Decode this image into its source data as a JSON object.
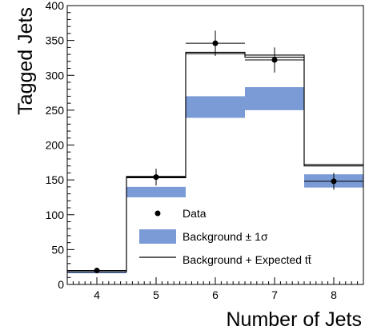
{
  "chart_data": {
    "type": "bar",
    "title": "",
    "xlabel": "Number of Jets",
    "ylabel": "Tagged Jets",
    "categories": [
      "4",
      "5",
      "6",
      "7",
      "8"
    ],
    "xlim": [
      3.5,
      8.5
    ],
    "ylim": [
      0,
      400
    ],
    "yticks": [
      "0",
      "50",
      "100",
      "150",
      "200",
      "250",
      "300",
      "350",
      "400"
    ],
    "grid": false,
    "legend_position": "bottom-center",
    "series": [
      {
        "name": "Data",
        "style": "points-with-error-bars",
        "color": "#000000",
        "values": [
          20,
          154,
          346,
          322,
          148
        ],
        "errors": [
          4,
          12,
          18,
          18,
          12
        ]
      },
      {
        "name": "Background ± 1σ",
        "style": "band",
        "color": "#7b9bd6",
        "low": [
          16,
          125,
          239,
          250,
          139
        ],
        "high": [
          19,
          140,
          270,
          283,
          158
        ]
      },
      {
        "name": "Background + Expected tt̄",
        "style": "step-line",
        "color": "#000000",
        "upper": [
          20,
          155,
          333,
          329,
          172
        ],
        "lower": [
          18,
          153,
          331,
          326,
          170
        ]
      }
    ]
  }
}
